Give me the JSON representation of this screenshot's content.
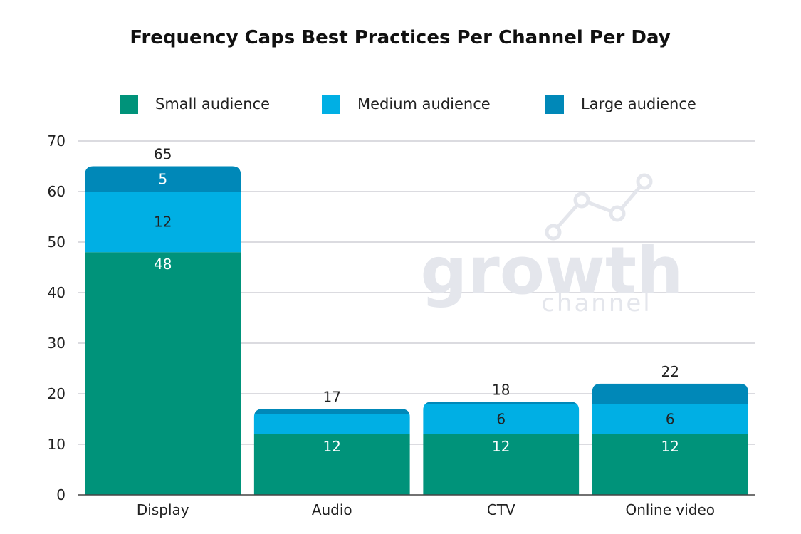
{
  "chart_data": {
    "type": "bar",
    "stacked": true,
    "title": "Frequency Caps Best Practices Per Channel Per Day",
    "categories": [
      "Display",
      "Audio",
      "CTV",
      "Online video"
    ],
    "series": [
      {
        "name": "Small audience",
        "color": "#00937a",
        "values": [
          48,
          12,
          12,
          12
        ],
        "labels": [
          "48",
          "12",
          "12",
          "12"
        ],
        "label_color": "#ffffff"
      },
      {
        "name": "Medium audience",
        "color": "#00afe4",
        "values": [
          12,
          4,
          6,
          6
        ],
        "labels": [
          "12",
          "",
          "6",
          "6"
        ],
        "label_color": "#222222"
      },
      {
        "name": "Large audience",
        "color": "#0088b8",
        "values": [
          5,
          1,
          0.4,
          4
        ],
        "labels": [
          "5",
          "",
          "",
          ""
        ],
        "label_color": "#ffffff"
      }
    ],
    "totals": [
      "65",
      "17",
      "18",
      "22"
    ],
    "xlabel": "",
    "ylabel": "",
    "ylim": [
      0,
      70
    ],
    "yticks": [
      0,
      10,
      20,
      30,
      40,
      50,
      60,
      70
    ],
    "grid": true,
    "legend_position": "top"
  },
  "watermark": {
    "brand": "growth",
    "sub": "channel"
  }
}
